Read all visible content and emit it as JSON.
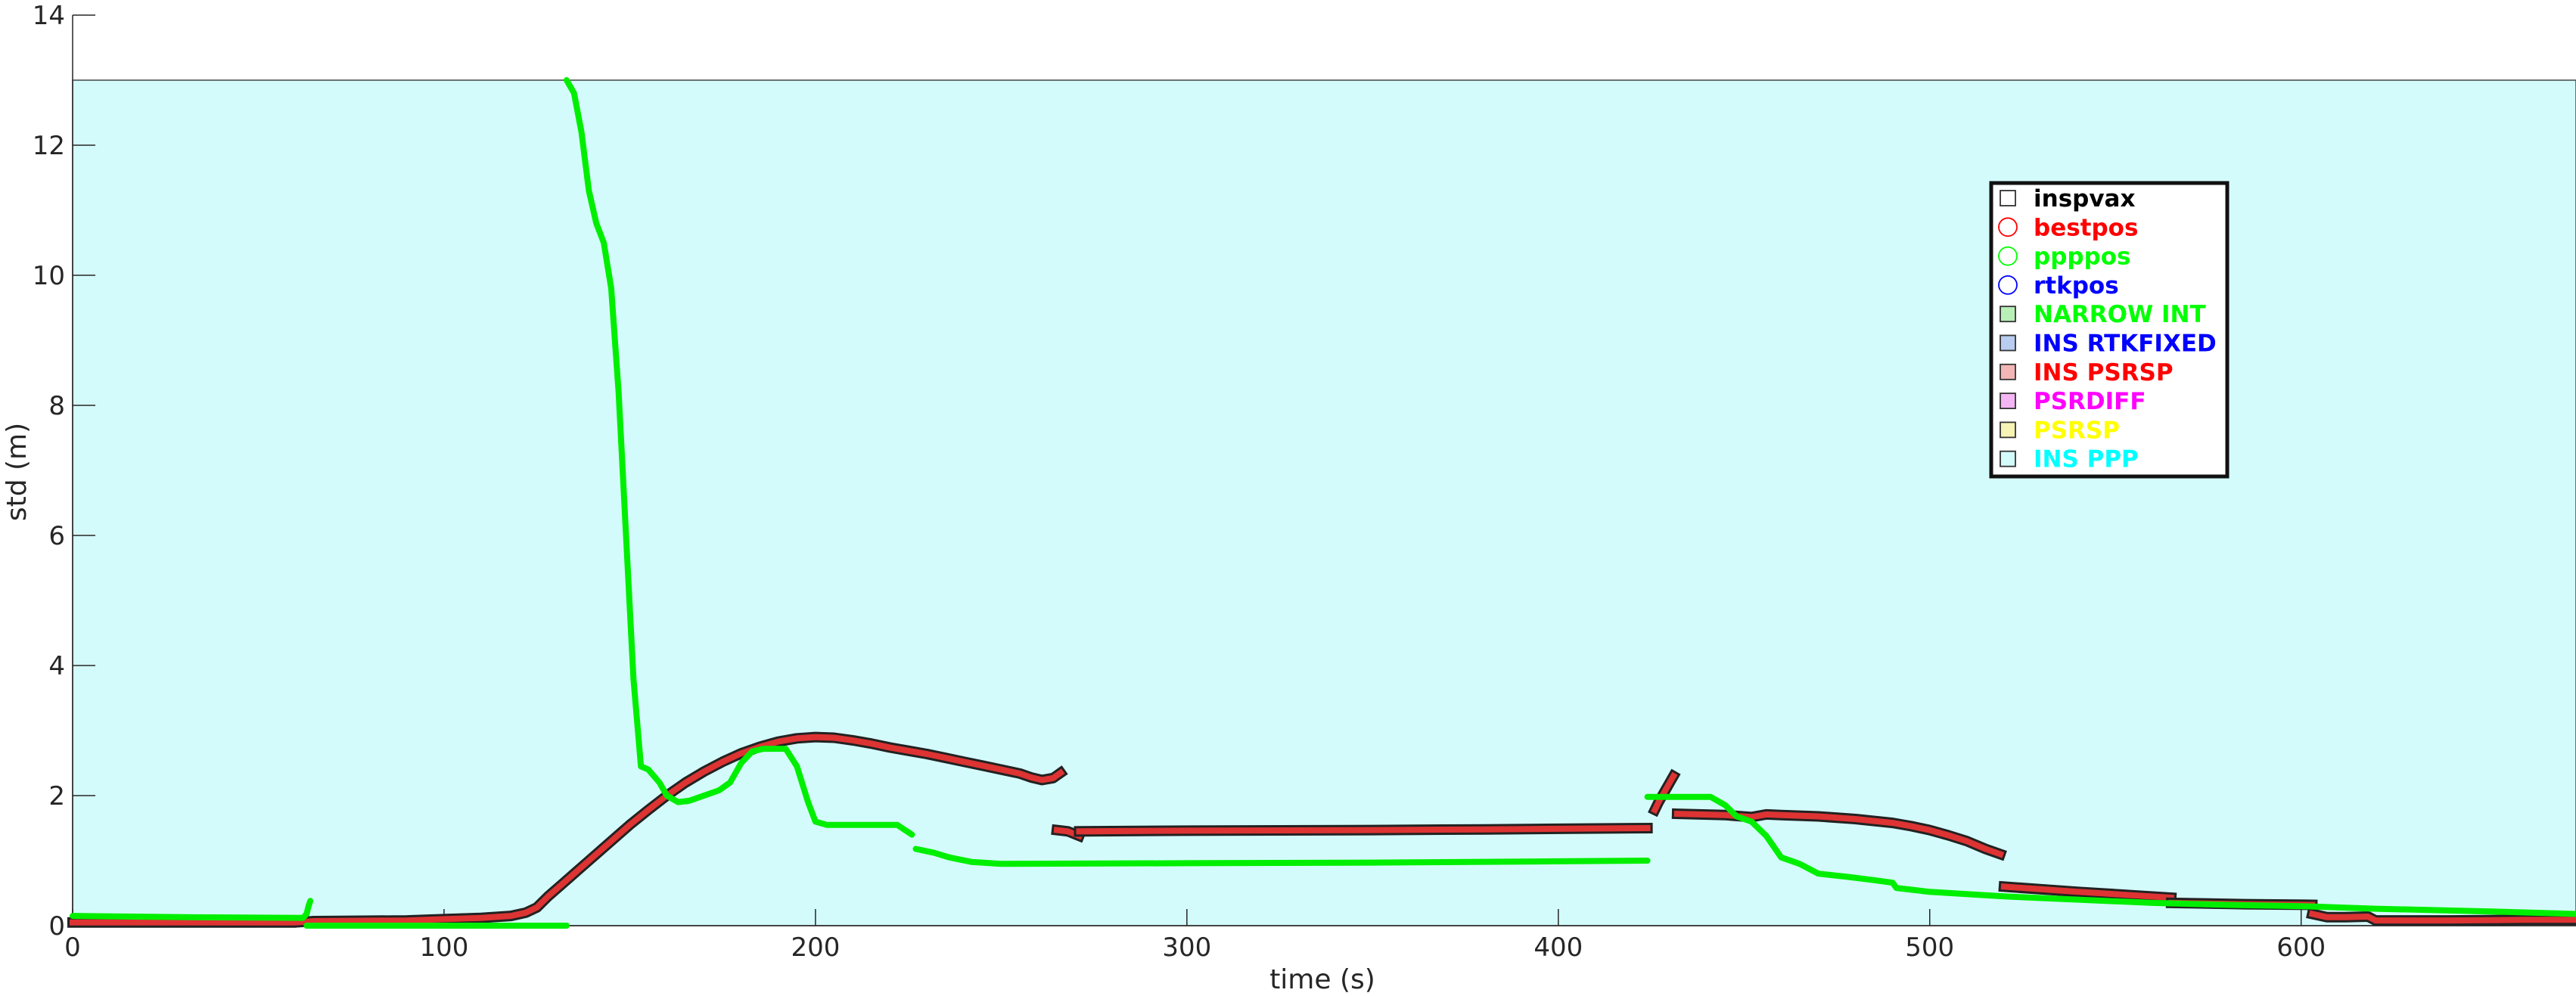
{
  "chart_data": {
    "type": "line",
    "title": "",
    "xlabel": "time (s)",
    "ylabel": "std (m)",
    "xlim": [
      0,
      674
    ],
    "ylim": [
      0,
      14
    ],
    "xticks": [
      0,
      100,
      200,
      300,
      400,
      500,
      600
    ],
    "yticks": [
      0,
      2,
      4,
      6,
      8,
      10,
      12,
      14
    ],
    "grid": false,
    "background_band": {
      "label": "INS PPP",
      "color": "#d4fbfb",
      "y_range": [
        0,
        13
      ]
    },
    "legend": {
      "placement": "upper-right",
      "entries": [
        {
          "label": "inspvax",
          "marker": "square",
          "color": "#000000",
          "fill": "none"
        },
        {
          "label": "bestpos",
          "marker": "circle",
          "color": "#ff0000",
          "fill": "none"
        },
        {
          "label": "ppppos",
          "marker": "circle",
          "color": "#00ff00",
          "fill": "none"
        },
        {
          "label": "rtkpos",
          "marker": "circle",
          "color": "#0000ff",
          "fill": "none"
        },
        {
          "label": "NARROW INT",
          "marker": "square",
          "color": "#00ff00",
          "fill": "#b8f0b8"
        },
        {
          "label": "INS RTKFIXED",
          "marker": "square",
          "color": "#0000ff",
          "fill": "#b8cdf0"
        },
        {
          "label": "INS PSRSP",
          "marker": "square",
          "color": "#ff0000",
          "fill": "#f3b5b5"
        },
        {
          "label": "PSRDIFF",
          "marker": "square",
          "color": "#ff00ff",
          "fill": "#f3b5f3"
        },
        {
          "label": "PSRSP",
          "marker": "square",
          "color": "#ffff00",
          "fill": "#f7f3b5"
        },
        {
          "label": "INS PPP",
          "marker": "square",
          "color": "#00ffff",
          "fill": "#d4fbfb"
        }
      ]
    },
    "series": [
      {
        "type": "line",
        "style": "marker-line",
        "color": "#dd3333",
        "edge_color": "#222222",
        "segments": [
          [
            [
              0,
              0.05
            ],
            [
              30,
              0.05
            ],
            [
              60,
              0.05
            ],
            [
              65,
              0.07
            ],
            [
              90,
              0.08
            ],
            [
              100,
              0.1
            ],
            [
              110,
              0.12
            ],
            [
              118,
              0.15
            ],
            [
              122,
              0.2
            ],
            [
              125,
              0.28
            ],
            [
              128,
              0.45
            ],
            [
              132,
              0.65
            ],
            [
              136,
              0.85
            ],
            [
              140,
              1.05
            ],
            [
              145,
              1.3
            ],
            [
              150,
              1.55
            ],
            [
              155,
              1.78
            ],
            [
              160,
              2.0
            ],
            [
              165,
              2.2
            ],
            [
              170,
              2.37
            ],
            [
              175,
              2.52
            ],
            [
              180,
              2.65
            ],
            [
              185,
              2.75
            ],
            [
              190,
              2.83
            ],
            [
              195,
              2.88
            ],
            [
              200,
              2.9
            ],
            [
              205,
              2.89
            ],
            [
              210,
              2.85
            ],
            [
              215,
              2.8
            ],
            [
              220,
              2.74
            ],
            [
              225,
              2.69
            ],
            [
              230,
              2.64
            ],
            [
              235,
              2.58
            ],
            [
              240,
              2.52
            ],
            [
              245,
              2.46
            ],
            [
              250,
              2.4
            ],
            [
              255,
              2.34
            ],
            [
              258,
              2.28
            ],
            [
              261,
              2.24
            ],
            [
              264,
              2.27
            ],
            [
              266,
              2.35
            ]
          ],
          [
            [
              265,
              1.47
            ],
            [
              268,
              1.45
            ],
            [
              271,
              1.38
            ]
          ],
          [
            [
              271,
              1.45
            ],
            [
              300,
              1.46
            ],
            [
              350,
              1.47
            ],
            [
              380,
              1.48
            ],
            [
              400,
              1.49
            ],
            [
              424,
              1.5
            ]
          ],
          [
            [
              426,
              1.78
            ],
            [
              427,
              1.9
            ],
            [
              428,
              2.0
            ],
            [
              429,
              2.1
            ],
            [
              430,
              2.2
            ],
            [
              431,
              2.3
            ]
          ],
          [
            [
              432,
              1.72
            ],
            [
              445,
              1.7
            ],
            [
              452,
              1.67
            ],
            [
              456,
              1.71
            ],
            [
              460,
              1.7
            ],
            [
              470,
              1.68
            ],
            [
              480,
              1.64
            ],
            [
              490,
              1.58
            ],
            [
              495,
              1.53
            ],
            [
              500,
              1.47
            ],
            [
              505,
              1.39
            ],
            [
              510,
              1.3
            ],
            [
              515,
              1.18
            ],
            [
              519,
              1.1
            ]
          ],
          [
            [
              520,
              0.6
            ],
            [
              540,
              0.52
            ],
            [
              565,
              0.43
            ]
          ],
          [
            [
              565,
              0.35
            ],
            [
              585,
              0.33
            ],
            [
              603,
              0.32
            ]
          ],
          [
            [
              603,
              0.18
            ],
            [
              607,
              0.13
            ],
            [
              612,
              0.13
            ],
            [
              618,
              0.14
            ],
            [
              620,
              0.08
            ],
            [
              640,
              0.08
            ],
            [
              660,
              0.09
            ],
            [
              674,
              0.09
            ]
          ]
        ]
      },
      {
        "type": "line",
        "style": "thick-line",
        "color": "#00ee00",
        "segments": [
          [
            [
              0,
              0.15
            ],
            [
              30,
              0.13
            ],
            [
              62,
              0.12
            ],
            [
              63,
              0.18
            ],
            [
              63.5,
              0.3
            ],
            [
              64,
              0.38
            ]
          ],
          [
            [
              63,
              0.0
            ],
            [
              100,
              0.0
            ],
            [
              133,
              0.0
            ]
          ],
          [
            [
              133,
              13.0
            ],
            [
              135,
              12.8
            ],
            [
              137,
              12.2
            ],
            [
              139,
              11.3
            ],
            [
              141,
              10.8
            ],
            [
              143,
              10.5
            ],
            [
              145,
              9.8
            ],
            [
              147,
              8.2
            ],
            [
              149,
              6.0
            ],
            [
              151,
              3.8
            ],
            [
              153,
              2.45
            ],
            [
              155,
              2.4
            ],
            [
              158,
              2.2
            ],
            [
              160,
              2.0
            ],
            [
              163,
              1.9
            ],
            [
              166,
              1.92
            ],
            [
              170,
              2.0
            ],
            [
              174,
              2.08
            ],
            [
              177,
              2.2
            ],
            [
              180,
              2.5
            ],
            [
              183,
              2.68
            ],
            [
              186,
              2.72
            ],
            [
              192,
              2.72
            ],
            [
              195,
              2.45
            ],
            [
              198,
              1.9
            ],
            [
              200,
              1.6
            ],
            [
              203,
              1.55
            ],
            [
              210,
              1.55
            ],
            [
              222,
              1.55
            ],
            [
              226,
              1.4
            ]
          ],
          [
            [
              227,
              1.18
            ],
            [
              232,
              1.12
            ],
            [
              236,
              1.05
            ],
            [
              242,
              0.98
            ],
            [
              250,
              0.95
            ],
            [
              300,
              0.96
            ],
            [
              350,
              0.97
            ],
            [
              400,
              0.99
            ],
            [
              424,
              1.0
            ]
          ],
          [
            [
              424,
              1.98
            ],
            [
              435,
              1.98
            ],
            [
              441,
              1.98
            ],
            [
              445,
              1.85
            ],
            [
              448,
              1.68
            ],
            [
              452,
              1.6
            ],
            [
              456,
              1.38
            ],
            [
              460,
              1.05
            ],
            [
              465,
              0.95
            ],
            [
              470,
              0.8
            ],
            [
              478,
              0.75
            ],
            [
              485,
              0.7
            ],
            [
              490,
              0.66
            ],
            [
              491,
              0.58
            ],
            [
              500,
              0.52
            ],
            [
              520,
              0.45
            ],
            [
              540,
              0.4
            ],
            [
              560,
              0.35
            ],
            [
              580,
              0.32
            ],
            [
              600,
              0.3
            ],
            [
              620,
              0.26
            ],
            [
              650,
              0.22
            ],
            [
              674,
              0.18
            ]
          ]
        ]
      }
    ]
  }
}
